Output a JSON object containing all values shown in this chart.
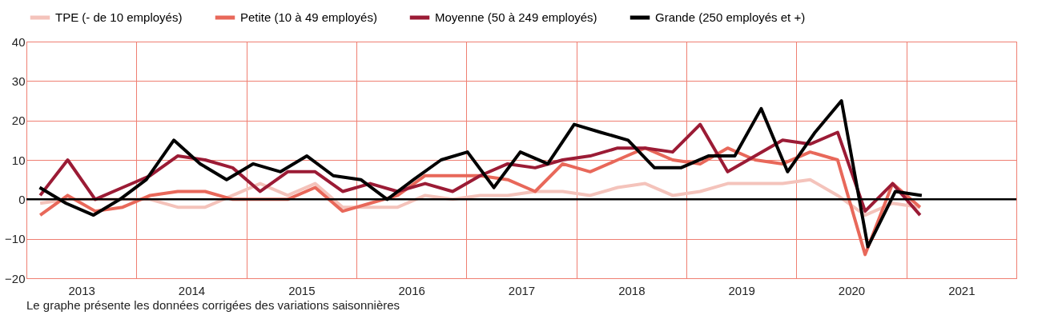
{
  "chart_data": {
    "type": "line",
    "x": [
      2013.125,
      2013.375,
      2013.625,
      2013.875,
      2014.125,
      2014.375,
      2014.625,
      2014.875,
      2015.125,
      2015.375,
      2015.625,
      2015.875,
      2016.125,
      2016.375,
      2016.625,
      2016.875,
      2017.125,
      2017.375,
      2017.625,
      2017.875,
      2018.125,
      2018.375,
      2018.625,
      2018.875,
      2019.125,
      2019.375,
      2019.625,
      2019.875,
      2020.125,
      2020.375,
      2020.625,
      2020.875,
      2021.125
    ],
    "series": [
      {
        "name": "TPE (- de 10 employés)",
        "color": "#f4c3bb",
        "values": [
          -1,
          0,
          0,
          0,
          0,
          -2,
          -2,
          1,
          4,
          1,
          4,
          -2,
          -2,
          -2,
          1,
          0,
          1,
          1,
          2,
          2,
          1,
          3,
          4,
          1,
          2,
          4,
          4,
          4,
          5,
          1,
          -4,
          -1,
          -2
        ]
      },
      {
        "name": "Petite (10 à 49 employés)",
        "color": "#e8685a",
        "values": [
          -4,
          1,
          -3,
          -2,
          1,
          2,
          2,
          0,
          0,
          0,
          3,
          -3,
          -1,
          1,
          6,
          6,
          6,
          5,
          2,
          9,
          7,
          10,
          13,
          10,
          9,
          13,
          10,
          9,
          12,
          10,
          -14,
          4,
          -2
        ]
      },
      {
        "name": "Moyenne (50 à 249 employés)",
        "color": "#9b1b35",
        "values": [
          1,
          10,
          0,
          3,
          6,
          11,
          10,
          8,
          2,
          7,
          7,
          2,
          4,
          2,
          4,
          2,
          6,
          9,
          8,
          10,
          11,
          13,
          13,
          12,
          19,
          7,
          11,
          15,
          14,
          17,
          -3,
          4,
          -4
        ]
      },
      {
        "name": "Grande (250 employés et +)",
        "color": "#000000",
        "x": [
          2013.12,
          2013.36,
          2013.61,
          2013.85,
          2014.09,
          2014.34,
          2014.58,
          2014.82,
          2015.06,
          2015.31,
          2015.55,
          2015.79,
          2016.04,
          2016.28,
          2016.52,
          2016.77,
          2017.01,
          2017.25,
          2017.49,
          2017.74,
          2017.98,
          2018.22,
          2018.47,
          2018.71,
          2018.95,
          2019.2,
          2019.44,
          2019.68,
          2019.92,
          2020.17,
          2020.41,
          2020.65,
          2020.9,
          2021.14
        ],
        "values": [
          3,
          -1,
          -4,
          0,
          5,
          15,
          9,
          5,
          9,
          7,
          11,
          6,
          5,
          0,
          5,
          10,
          12,
          3,
          12,
          9,
          19,
          17,
          15,
          8,
          8,
          11,
          11,
          23,
          7,
          17,
          25,
          -12,
          2,
          1
        ]
      }
    ],
    "xlim": [
      2013,
      2022
    ],
    "xticks": [
      {
        "value": 2013,
        "label": null
      },
      {
        "value": 2013.5,
        "label": "2013"
      },
      {
        "value": 2014,
        "label": null
      },
      {
        "value": 2014.5,
        "label": "2014"
      },
      {
        "value": 2015,
        "label": null
      },
      {
        "value": 2015.5,
        "label": "2015"
      },
      {
        "value": 2016,
        "label": null
      },
      {
        "value": 2016.5,
        "label": "2016"
      },
      {
        "value": 2017,
        "label": null
      },
      {
        "value": 2017.5,
        "label": "2017"
      },
      {
        "value": 2018,
        "label": null
      },
      {
        "value": 2018.5,
        "label": "2018"
      },
      {
        "value": 2019,
        "label": null
      },
      {
        "value": 2019.5,
        "label": "2019"
      },
      {
        "value": 2020,
        "label": null
      },
      {
        "value": 2020.5,
        "label": "2020"
      },
      {
        "value": 2021,
        "label": null
      },
      {
        "value": 2021.5,
        "label": "2021"
      },
      {
        "value": 2022,
        "label": null
      }
    ],
    "ylim": [
      -20,
      40
    ],
    "yticks": [
      -20,
      -10,
      0,
      10,
      20,
      30,
      40
    ],
    "grid": true,
    "legend": "top",
    "line_style": "solid",
    "ref_lines": [
      {
        "axis": "y",
        "value": 0,
        "color": "#000000"
      }
    ],
    "annotations": [
      "Le graphe présente les données corrigées des variations saisonnières"
    ]
  }
}
